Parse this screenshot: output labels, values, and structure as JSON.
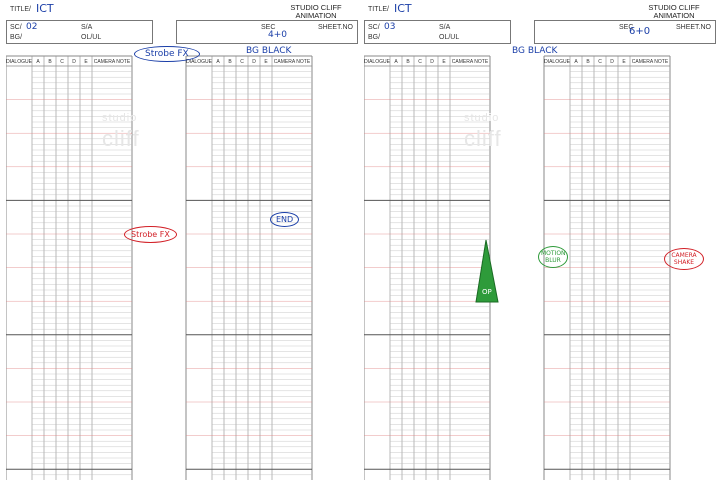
{
  "sheets": [
    {
      "title_label": "TITLE/",
      "title_value": "ICT",
      "sc_label": "SC/",
      "sc_value": "02",
      "sa_label": "S/A",
      "bg_label": "BG/",
      "olul_label": "OL/UL",
      "sec_label": "SEC",
      "sec_value": "4+0",
      "sheetno_label": "SHEET.NO",
      "studio_line1": "STUDIO CLIFF",
      "studio_line2": "ANIMATION",
      "columns": [
        "DIALOGUE",
        "A",
        "B",
        "C",
        "D",
        "E",
        "CAMERA NOTE"
      ],
      "annotations": {
        "strobe_top": "Strobe FX",
        "bg_black": "BG BLACK",
        "end_mark": "END",
        "strobe_side": "Strobe FX"
      },
      "watermark": "cliff",
      "watermark_small": "studio"
    },
    {
      "title_label": "TITLE/",
      "title_value": "ICT",
      "sc_label": "SC/",
      "sc_value": "03",
      "sa_label": "S/A",
      "bg_label": "BG/",
      "olul_label": "OL/UL",
      "sec_label": "SEC",
      "sec_value": "6+0",
      "sheetno_label": "SHEET.NO",
      "studio_line1": "STUDIO CLIFF",
      "studio_line2": "ANIMATION",
      "columns": [
        "DIALOGUE",
        "A",
        "B",
        "C",
        "D",
        "E",
        "CAMERA NOTE"
      ],
      "annotations": {
        "bg_black": "BG BLACK",
        "motion_blur": "MOTION BLUR",
        "camera_shake": "CAMERA SHAKE",
        "fade_mark": "OP"
      },
      "watermark": "cliff",
      "watermark_small": "studio"
    }
  ],
  "colors": {
    "ink_blue": "#1b3fa8",
    "ink_red": "#d21f26",
    "ink_green": "#2e9b3a",
    "grid": "#8a8a8a",
    "red_rule": "#e08080"
  }
}
